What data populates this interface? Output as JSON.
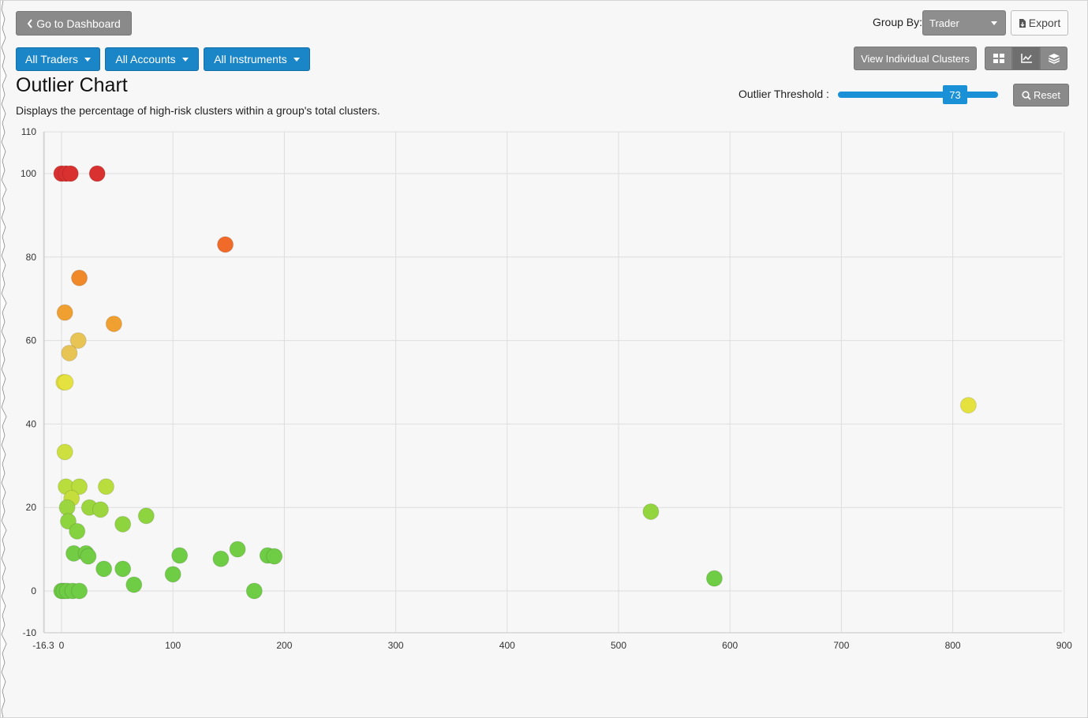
{
  "header": {
    "back_button": "Go to Dashboard",
    "group_by_label": "Group By:",
    "group_by_value": "Trader",
    "export_button": "Export",
    "view_clusters_button": "View Individual Clusters",
    "filters": [
      "All Traders",
      "All Accounts",
      "All Instruments"
    ]
  },
  "page": {
    "title": "Outlier Chart",
    "subtitle": "Displays the percentage of high-risk clusters within a group's total clusters.",
    "threshold_label": "Outlier Threshold :",
    "threshold_value": "73",
    "reset_button": "Reset"
  },
  "icons": {
    "back": "chevron-left-icon",
    "export": "file-export-icon",
    "reset": "magnifier-icon",
    "views": [
      "grid-view-icon",
      "line-chart-icon",
      "layers-icon"
    ]
  },
  "colors": {
    "accent": "#1a86c8",
    "high": "#d93030",
    "med_high": "#f06a2a",
    "medium": "#f0a030",
    "low_medium": "#e8c455",
    "low": "#e5e240",
    "very_low": "#a8dc3a",
    "safe": "#6fcc45"
  },
  "chart_data": {
    "type": "scatter",
    "xlim": [
      -16.3,
      900
    ],
    "ylim": [
      -10,
      110
    ],
    "x_ticks": [
      "-16.3",
      "0",
      "100",
      "200",
      "300",
      "400",
      "500",
      "600",
      "700",
      "800",
      "900"
    ],
    "x_tick_values": [
      -16.3,
      0,
      100,
      200,
      300,
      400,
      500,
      600,
      700,
      800,
      900
    ],
    "y_ticks": [
      110,
      100,
      80,
      60,
      40,
      20,
      0,
      -10
    ],
    "grid": true,
    "points": [
      {
        "x": 0,
        "y": 100,
        "color": "#d93030"
      },
      {
        "x": 4,
        "y": 100,
        "color": "#d93030"
      },
      {
        "x": 8,
        "y": 100,
        "color": "#d93030"
      },
      {
        "x": 32,
        "y": 100,
        "color": "#d93030"
      },
      {
        "x": 147,
        "y": 83,
        "color": "#f06a2a"
      },
      {
        "x": 16,
        "y": 75,
        "color": "#f0892a"
      },
      {
        "x": 3,
        "y": 66.7,
        "color": "#f0a030"
      },
      {
        "x": 47,
        "y": 64,
        "color": "#f0a030"
      },
      {
        "x": 15,
        "y": 60,
        "color": "#e8c455"
      },
      {
        "x": 7,
        "y": 57,
        "color": "#e8c455"
      },
      {
        "x": 2,
        "y": 50,
        "color": "#e5e240"
      },
      {
        "x": 3.5,
        "y": 50,
        "color": "#e5e240"
      },
      {
        "x": 814,
        "y": 44.5,
        "color": "#e5e240"
      },
      {
        "x": 3,
        "y": 33.3,
        "color": "#cde040"
      },
      {
        "x": 4,
        "y": 25,
        "color": "#b8dd3c"
      },
      {
        "x": 16,
        "y": 25,
        "color": "#b8dd3c"
      },
      {
        "x": 40,
        "y": 25,
        "color": "#b8dd3c"
      },
      {
        "x": 9,
        "y": 22.2,
        "color": "#c6de3c"
      },
      {
        "x": 5,
        "y": 20,
        "color": "#9bd63e"
      },
      {
        "x": 25,
        "y": 20,
        "color": "#9bd63e"
      },
      {
        "x": 35,
        "y": 19.5,
        "color": "#9bd63e"
      },
      {
        "x": 529,
        "y": 19,
        "color": "#92d53f"
      },
      {
        "x": 76,
        "y": 18,
        "color": "#8ed43f"
      },
      {
        "x": 6,
        "y": 16.7,
        "color": "#8ed43f"
      },
      {
        "x": 55,
        "y": 16,
        "color": "#8ed43f"
      },
      {
        "x": 14,
        "y": 14.3,
        "color": "#84d240"
      },
      {
        "x": 11,
        "y": 9,
        "color": "#72cd44"
      },
      {
        "x": 22,
        "y": 9,
        "color": "#72cd44"
      },
      {
        "x": 24,
        "y": 8.3,
        "color": "#72cd44"
      },
      {
        "x": 158,
        "y": 10,
        "color": "#72cd44"
      },
      {
        "x": 106,
        "y": 8.5,
        "color": "#6fcc45"
      },
      {
        "x": 143,
        "y": 7.7,
        "color": "#6fcc45"
      },
      {
        "x": 185,
        "y": 8.5,
        "color": "#6fcc45"
      },
      {
        "x": 191,
        "y": 8.3,
        "color": "#6fcc45"
      },
      {
        "x": 38,
        "y": 5.3,
        "color": "#6fcc45"
      },
      {
        "x": 55,
        "y": 5.3,
        "color": "#6fcc45"
      },
      {
        "x": 100,
        "y": 4,
        "color": "#6fcc45"
      },
      {
        "x": 586,
        "y": 3,
        "color": "#6fcc45"
      },
      {
        "x": 65,
        "y": 1.5,
        "color": "#6fcc45"
      },
      {
        "x": 173,
        "y": 0,
        "color": "#6fcc45"
      },
      {
        "x": 0,
        "y": 0,
        "color": "#6fcc45"
      },
      {
        "x": 2,
        "y": 0,
        "color": "#6fcc45"
      },
      {
        "x": 5,
        "y": 0,
        "color": "#6fcc45"
      },
      {
        "x": 10,
        "y": 0,
        "color": "#6fcc45"
      },
      {
        "x": 16,
        "y": 0,
        "color": "#6fcc45"
      }
    ]
  }
}
